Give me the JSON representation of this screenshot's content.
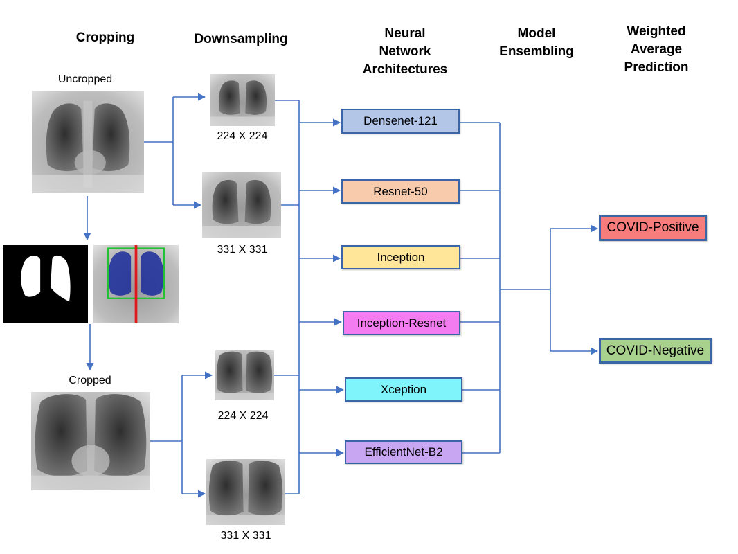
{
  "headers": {
    "cropping": "Cropping",
    "downsampling": "Downsampling",
    "architectures": "Neural\nNetwork\nArchitectures",
    "ensembling": "Model\nEnsembling",
    "prediction": "Weighted\nAverage\nPrediction"
  },
  "images": {
    "uncropped_label": "Uncropped",
    "cropped_label": "Cropped",
    "size_224_top": "224 X 224",
    "size_331_top": "331 X 331",
    "size_224_bottom": "224 X 224",
    "size_331_bottom": "331 X 331"
  },
  "models": [
    {
      "label": "Densenet-121",
      "color": "#b4c6e7"
    },
    {
      "label": "Resnet-50",
      "color": "#f8cbad"
    },
    {
      "label": "Inception",
      "color": "#ffe699"
    },
    {
      "label": "Inception-Resnet",
      "color": "#f37cf0"
    },
    {
      "label": "Xception",
      "color": "#7ff5fb"
    },
    {
      "label": "EfficientNet-B2",
      "color": "#c9a6f2"
    }
  ],
  "outputs": [
    {
      "label": "COVID-Positive",
      "color": "#f77c7c"
    },
    {
      "label": "COVID-Negative",
      "color": "#a9d18e"
    }
  ],
  "colors": {
    "connector": "#4472c4",
    "box_border": "#3a66a8",
    "mask_bbox": "#22c232",
    "mask_midline": "#e01818",
    "lung_overlay": "#1a2a9a"
  }
}
